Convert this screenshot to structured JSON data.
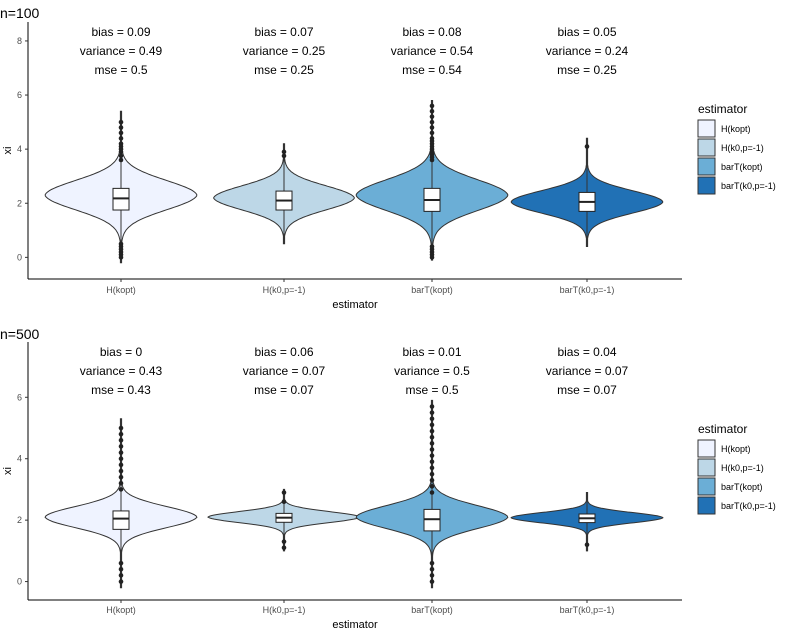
{
  "chart_data": [
    {
      "type": "violin",
      "title": "n=100",
      "xlabel": "estimator",
      "ylabel": "xi",
      "ylim": [
        -0.8,
        8.7
      ],
      "yticks": [
        0,
        2,
        4,
        6,
        8
      ],
      "categories": [
        "H(kopt)",
        "H(k0,p=-1)",
        "barT(kopt)",
        "barT(k0,p=-1)"
      ],
      "fills": [
        "#eff3ff",
        "#bdd7e7",
        "#6baed6",
        "#2171b5"
      ],
      "stats": [
        {
          "bias": "bias = 0.09",
          "variance": "variance = 0.49",
          "mse": "mse = 0.5"
        },
        {
          "bias": "bias = 0.07",
          "variance": "variance = 0.25",
          "mse": "mse = 0.25"
        },
        {
          "bias": "bias = 0.08",
          "variance": "variance = 0.54",
          "mse": "mse = 0.54"
        },
        {
          "bias": "bias = 0.05",
          "variance": "variance = 0.24",
          "mse": "mse = 0.25"
        }
      ],
      "violins": [
        {
          "min": -0.2,
          "max": 5.4,
          "q1": 1.75,
          "median": 2.18,
          "q3": 2.55,
          "mode": 2.3,
          "spread": 0.55,
          "width": 0.95,
          "outliers": [
            0.0,
            0.1,
            0.2,
            0.3,
            0.4,
            0.5,
            3.6,
            3.75,
            3.9,
            4.0,
            4.1,
            4.2,
            4.4,
            4.6,
            4.8,
            5.0
          ]
        },
        {
          "min": 0.5,
          "max": 4.2,
          "q1": 1.75,
          "median": 2.1,
          "q3": 2.45,
          "mode": 2.2,
          "spread": 0.45,
          "width": 0.88,
          "outliers": [
            3.75,
            3.9
          ]
        },
        {
          "min": -0.1,
          "max": 5.8,
          "q1": 1.7,
          "median": 2.12,
          "q3": 2.55,
          "mode": 2.3,
          "spread": 0.58,
          "width": 0.95,
          "outliers": [
            0.0,
            0.1,
            0.2,
            0.3,
            0.4,
            3.6,
            3.7,
            3.8,
            3.9,
            4.0,
            4.1,
            4.2,
            4.3,
            4.4,
            4.6,
            4.8,
            5.0,
            5.2,
            5.4,
            5.6
          ]
        },
        {
          "min": 0.4,
          "max": 4.4,
          "q1": 1.7,
          "median": 2.05,
          "q3": 2.4,
          "mode": 2.05,
          "spread": 0.42,
          "width": 0.95,
          "outliers": [
            4.1
          ]
        }
      ],
      "legend": {
        "title": "estimator",
        "items": [
          "H(kopt)",
          "H(k0,p=-1)",
          "barT(kopt)",
          "barT(k0,p=-1)"
        ],
        "position": "right"
      }
    },
    {
      "type": "violin",
      "title": "n=500",
      "xlabel": "estimator",
      "ylabel": "xi",
      "ylim": [
        -0.6,
        7.8
      ],
      "yticks": [
        0,
        2,
        4,
        6
      ],
      "categories": [
        "H(kopt)",
        "H(k0,p=-1)",
        "barT(kopt)",
        "barT(k0,p=-1)"
      ],
      "fills": [
        "#eff3ff",
        "#bdd7e7",
        "#6baed6",
        "#2171b5"
      ],
      "stats": [
        {
          "bias": "bias = 0",
          "variance": "variance = 0.43",
          "mse": "mse = 0.43"
        },
        {
          "bias": "bias = 0.06",
          "variance": "variance = 0.07",
          "mse": "mse = 0.07"
        },
        {
          "bias": "bias = 0.01",
          "variance": "variance = 0.5",
          "mse": "mse = 0.5"
        },
        {
          "bias": "bias = 0.04",
          "variance": "variance = 0.07",
          "mse": "mse = 0.07"
        }
      ],
      "violins": [
        {
          "min": -0.2,
          "max": 5.3,
          "q1": 1.7,
          "median": 2.05,
          "q3": 2.3,
          "mode": 2.1,
          "spread": 0.35,
          "width": 0.95,
          "outliers": [
            0.0,
            0.2,
            0.4,
            0.6,
            3.0,
            3.2,
            3.4,
            3.6,
            3.8,
            4.0,
            4.2,
            4.4,
            4.6,
            4.8,
            5.0
          ]
        },
        {
          "min": 1.0,
          "max": 3.0,
          "q1": 1.93,
          "median": 2.08,
          "q3": 2.22,
          "mode": 2.1,
          "spread": 0.18,
          "width": 0.95,
          "outliers": [
            1.1,
            1.3,
            2.6,
            2.9
          ]
        },
        {
          "min": -0.2,
          "max": 5.9,
          "q1": 1.65,
          "median": 2.03,
          "q3": 2.35,
          "mode": 2.1,
          "spread": 0.38,
          "width": 0.95,
          "outliers": [
            0.0,
            0.2,
            0.4,
            0.6,
            2.9,
            3.1,
            3.3,
            3.5,
            3.7,
            3.9,
            4.1,
            4.3,
            4.5,
            4.7,
            4.9,
            5.1,
            5.3,
            5.5,
            5.7
          ]
        },
        {
          "min": 1.0,
          "max": 2.9,
          "q1": 1.92,
          "median": 2.06,
          "q3": 2.2,
          "mode": 2.08,
          "spread": 0.17,
          "width": 0.95,
          "outliers": [
            1.2
          ]
        }
      ],
      "legend": {
        "title": "estimator",
        "items": [
          "H(kopt)",
          "H(k0,p=-1)",
          "barT(kopt)",
          "barT(k0,p=-1)"
        ],
        "position": "right"
      }
    }
  ]
}
